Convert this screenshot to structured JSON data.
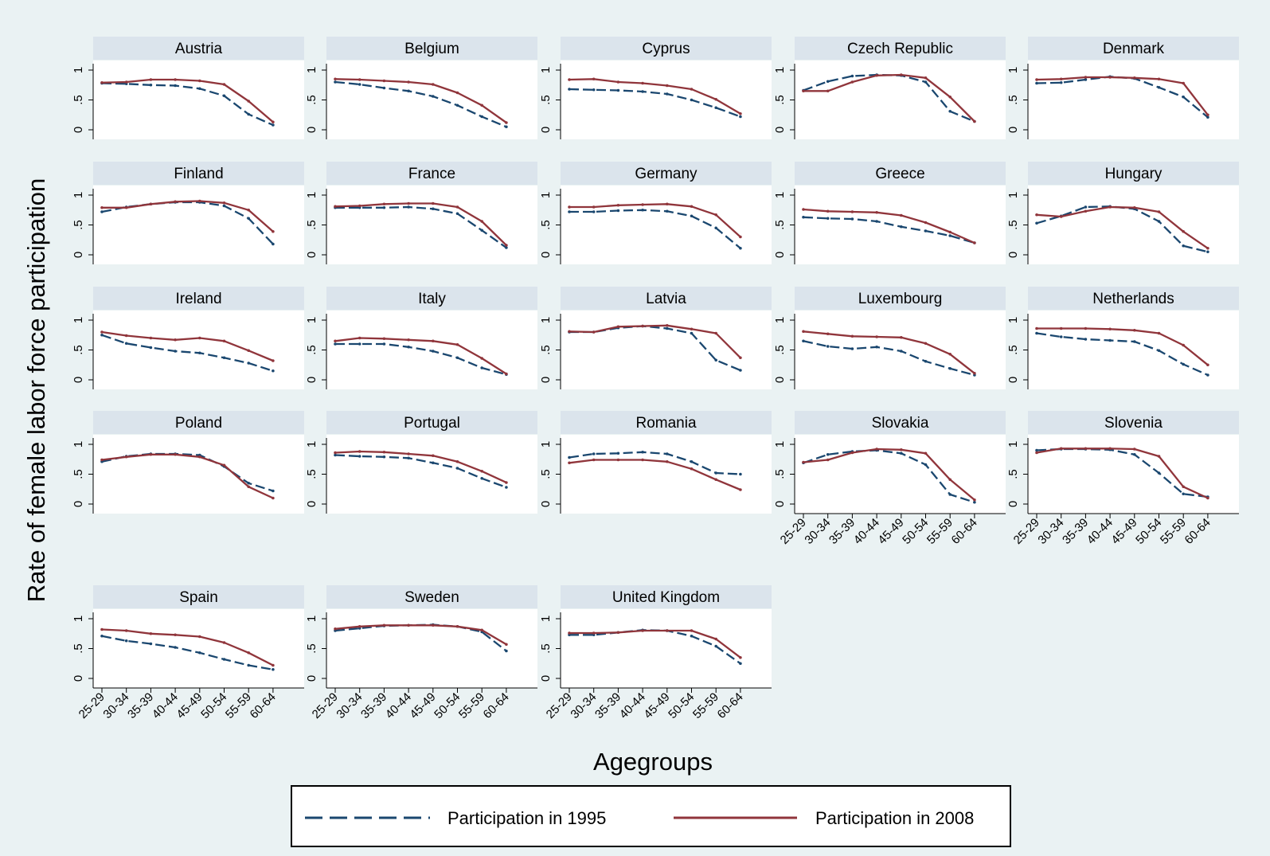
{
  "chart_data": {
    "type": "line",
    "x_categories": [
      "25-29",
      "30-34",
      "35-39",
      "40-44",
      "45-49",
      "50-54",
      "55-59",
      "60-64"
    ],
    "yticks": [
      0,
      0.5,
      1
    ],
    "ytick_labels": [
      "0",
      ".5",
      "1"
    ],
    "ylim": [
      0,
      1.1
    ],
    "xlabel": "Agegroups",
    "ylabel": "Rate of female labor force participation",
    "colors": {
      "outer_bg": "#eaf2f3",
      "strip": "#dbe4ec",
      "series_1995": "#1a476f",
      "series_2008": "#90353b"
    },
    "series_names": [
      "Participation in 1995",
      "Participation in 2008"
    ],
    "legend_position": "bottom",
    "panels": [
      {
        "country": "Austria",
        "v1995": [
          0.78,
          0.77,
          0.75,
          0.74,
          0.69,
          0.57,
          0.26,
          0.08
        ],
        "v2008": [
          0.79,
          0.8,
          0.84,
          0.84,
          0.82,
          0.76,
          0.48,
          0.13
        ]
      },
      {
        "country": "Belgium",
        "v1995": [
          0.8,
          0.76,
          0.7,
          0.65,
          0.56,
          0.41,
          0.22,
          0.05
        ],
        "v2008": [
          0.85,
          0.84,
          0.82,
          0.8,
          0.76,
          0.62,
          0.41,
          0.12
        ]
      },
      {
        "country": "Cyprus",
        "v1995": [
          0.68,
          0.67,
          0.66,
          0.64,
          0.6,
          0.5,
          0.37,
          0.22
        ],
        "v2008": [
          0.84,
          0.85,
          0.8,
          0.78,
          0.74,
          0.68,
          0.51,
          0.27
        ]
      },
      {
        "country": "Czech Republic",
        "v1995": [
          0.66,
          0.81,
          0.9,
          0.92,
          0.91,
          0.8,
          0.31,
          0.14
        ],
        "v2008": [
          0.65,
          0.65,
          0.8,
          0.91,
          0.92,
          0.87,
          0.55,
          0.14
        ]
      },
      {
        "country": "Denmark",
        "v1995": [
          0.78,
          0.79,
          0.84,
          0.89,
          0.86,
          0.71,
          0.55,
          0.21
        ],
        "v2008": [
          0.84,
          0.85,
          0.88,
          0.88,
          0.87,
          0.85,
          0.78,
          0.25
        ]
      },
      {
        "country": "Finland",
        "v1995": [
          0.72,
          0.8,
          0.85,
          0.88,
          0.88,
          0.82,
          0.61,
          0.18
        ],
        "v2008": [
          0.79,
          0.79,
          0.85,
          0.89,
          0.9,
          0.87,
          0.75,
          0.39
        ]
      },
      {
        "country": "France",
        "v1995": [
          0.79,
          0.79,
          0.79,
          0.8,
          0.77,
          0.69,
          0.41,
          0.12
        ],
        "v2008": [
          0.81,
          0.82,
          0.85,
          0.86,
          0.86,
          0.8,
          0.56,
          0.16
        ]
      },
      {
        "country": "Germany",
        "v1995": [
          0.72,
          0.72,
          0.74,
          0.75,
          0.73,
          0.65,
          0.45,
          0.11
        ],
        "v2008": [
          0.8,
          0.8,
          0.83,
          0.84,
          0.85,
          0.81,
          0.67,
          0.3
        ]
      },
      {
        "country": "Greece",
        "v1995": [
          0.63,
          0.61,
          0.6,
          0.56,
          0.47,
          0.4,
          0.32,
          0.2
        ],
        "v2008": [
          0.76,
          0.73,
          0.72,
          0.71,
          0.66,
          0.54,
          0.38,
          0.2
        ]
      },
      {
        "country": "Hungary",
        "v1995": [
          0.53,
          0.65,
          0.8,
          0.81,
          0.77,
          0.56,
          0.15,
          0.05
        ],
        "v2008": [
          0.67,
          0.64,
          0.73,
          0.8,
          0.79,
          0.72,
          0.39,
          0.11
        ]
      },
      {
        "country": "Ireland",
        "v1995": [
          0.75,
          0.61,
          0.54,
          0.48,
          0.45,
          0.37,
          0.28,
          0.15
        ],
        "v2008": [
          0.8,
          0.74,
          0.7,
          0.67,
          0.7,
          0.65,
          0.49,
          0.32
        ]
      },
      {
        "country": "Italy",
        "v1995": [
          0.6,
          0.6,
          0.6,
          0.55,
          0.48,
          0.37,
          0.2,
          0.09
        ],
        "v2008": [
          0.65,
          0.7,
          0.69,
          0.67,
          0.65,
          0.59,
          0.36,
          0.1
        ]
      },
      {
        "country": "Latvia",
        "v1995": [
          0.8,
          0.8,
          0.87,
          0.9,
          0.86,
          0.78,
          0.33,
          0.16
        ],
        "v2008": [
          0.81,
          0.8,
          0.89,
          0.9,
          0.91,
          0.85,
          0.78,
          0.37
        ]
      },
      {
        "country": "Luxembourg",
        "v1995": [
          0.65,
          0.56,
          0.52,
          0.55,
          0.48,
          0.31,
          0.19,
          0.08
        ],
        "v2008": [
          0.81,
          0.77,
          0.73,
          0.72,
          0.71,
          0.61,
          0.43,
          0.11
        ]
      },
      {
        "country": "Netherlands",
        "v1995": [
          0.78,
          0.72,
          0.68,
          0.66,
          0.64,
          0.49,
          0.26,
          0.08
        ],
        "v2008": [
          0.86,
          0.86,
          0.86,
          0.85,
          0.83,
          0.78,
          0.58,
          0.25
        ]
      },
      {
        "country": "Poland",
        "v1995": [
          0.71,
          0.8,
          0.84,
          0.84,
          0.82,
          0.63,
          0.35,
          0.22
        ],
        "v2008": [
          0.74,
          0.79,
          0.83,
          0.83,
          0.79,
          0.65,
          0.29,
          0.1
        ]
      },
      {
        "country": "Portugal",
        "v1995": [
          0.82,
          0.8,
          0.79,
          0.77,
          0.69,
          0.6,
          0.43,
          0.28
        ],
        "v2008": [
          0.86,
          0.88,
          0.87,
          0.84,
          0.81,
          0.71,
          0.55,
          0.36
        ]
      },
      {
        "country": "Romania",
        "v1995": [
          0.78,
          0.84,
          0.85,
          0.87,
          0.84,
          0.71,
          0.52,
          0.5
        ],
        "v2008": [
          0.69,
          0.74,
          0.74,
          0.74,
          0.71,
          0.59,
          0.41,
          0.24
        ]
      },
      {
        "country": "Slovakia",
        "v1995": [
          0.69,
          0.83,
          0.88,
          0.9,
          0.85,
          0.66,
          0.16,
          0.03
        ],
        "v2008": [
          0.7,
          0.74,
          0.86,
          0.92,
          0.91,
          0.85,
          0.41,
          0.07
        ]
      },
      {
        "country": "Slovenia",
        "v1995": [
          0.9,
          0.92,
          0.92,
          0.91,
          0.83,
          0.52,
          0.17,
          0.12
        ],
        "v2008": [
          0.86,
          0.93,
          0.93,
          0.93,
          0.92,
          0.8,
          0.29,
          0.1
        ]
      },
      {
        "country": "Spain",
        "v1995": [
          0.71,
          0.63,
          0.58,
          0.52,
          0.43,
          0.32,
          0.22,
          0.15
        ],
        "v2008": [
          0.82,
          0.8,
          0.75,
          0.73,
          0.7,
          0.6,
          0.43,
          0.22
        ]
      },
      {
        "country": "Sweden",
        "v1995": [
          0.8,
          0.84,
          0.88,
          0.89,
          0.9,
          0.87,
          0.78,
          0.46
        ],
        "v2008": [
          0.83,
          0.87,
          0.89,
          0.89,
          0.89,
          0.87,
          0.81,
          0.57
        ]
      },
      {
        "country": "United Kingdom",
        "v1995": [
          0.73,
          0.73,
          0.77,
          0.81,
          0.8,
          0.71,
          0.54,
          0.25
        ],
        "v2008": [
          0.76,
          0.76,
          0.77,
          0.8,
          0.8,
          0.8,
          0.66,
          0.35
        ]
      }
    ]
  }
}
